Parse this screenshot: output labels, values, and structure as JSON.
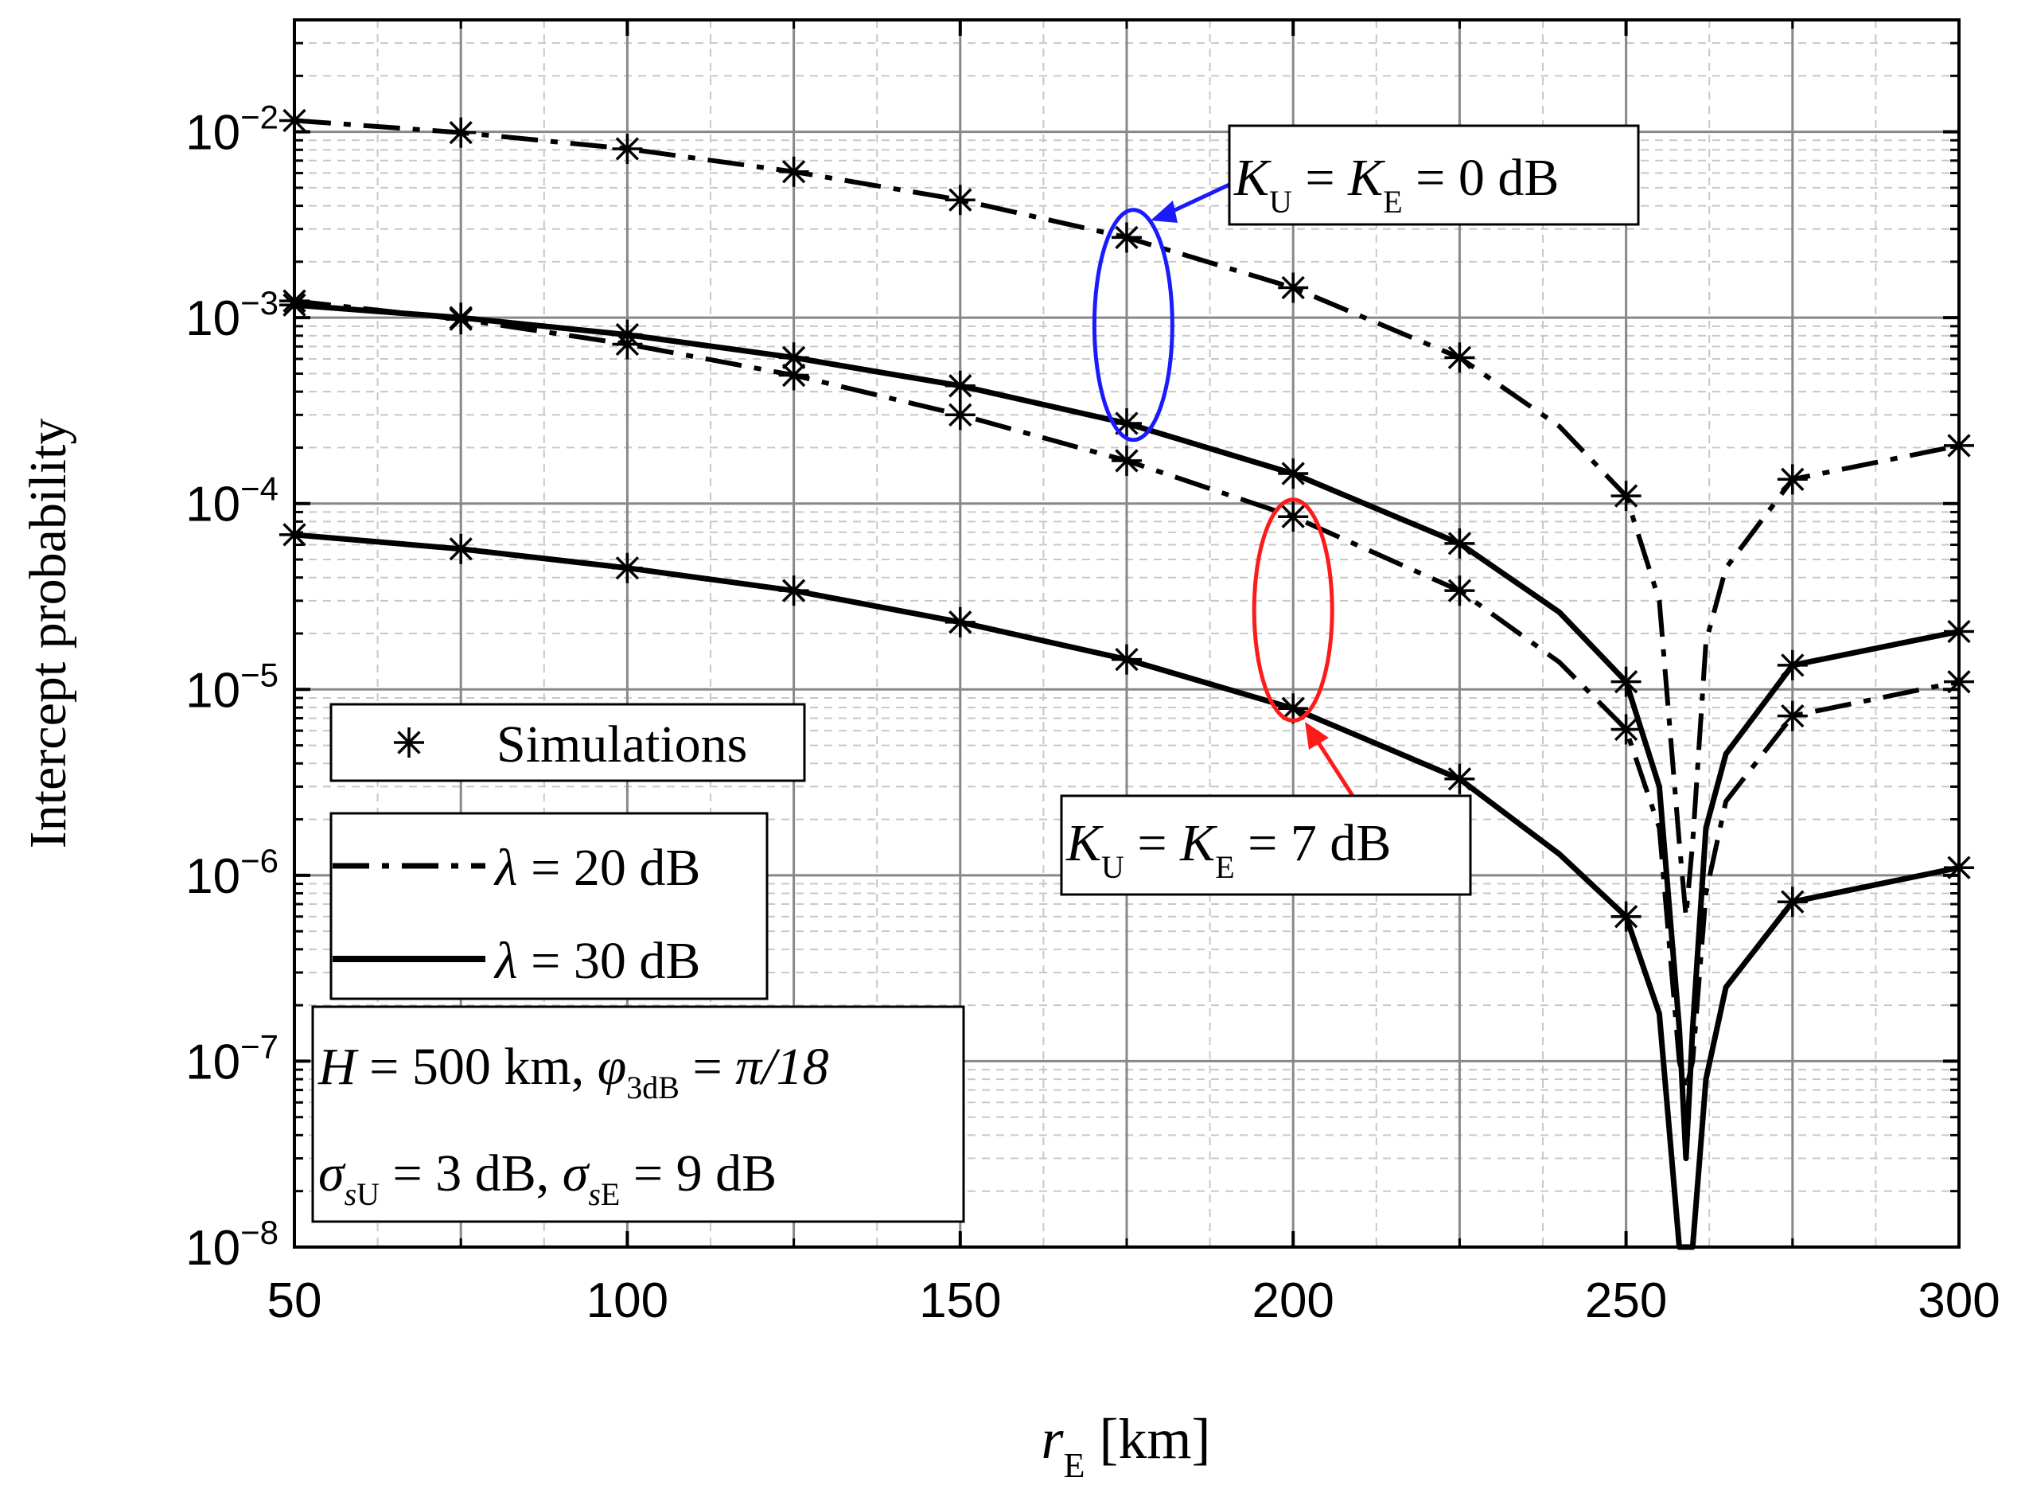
{
  "chart_data": {
    "type": "line",
    "title": "",
    "xlabel": {
      "symbol": "r",
      "subscript": "E",
      "unit": " [km]"
    },
    "ylabel": "Intercept probability",
    "yscale": "log",
    "xlim": [
      50,
      300
    ],
    "ylim": [
      1e-08,
      0.04
    ],
    "grid": true,
    "xticks": [
      50,
      100,
      150,
      200,
      250,
      300
    ],
    "xtick_labels": [
      "50",
      "100",
      "150",
      "200",
      "250",
      "300"
    ],
    "ytick_exponents": [
      -8,
      -7,
      -6,
      -5,
      -4,
      -3,
      -2
    ],
    "ytick_base": "10",
    "series": [
      {
        "name": "K_U = K_E = 0 dB, lambda = 20 dB",
        "style": "dashdot",
        "x": [
          50,
          75,
          100,
          125,
          150,
          175,
          200,
          225,
          240,
          250,
          255,
          258,
          259,
          260,
          262,
          265,
          275,
          300
        ],
        "y": [
          0.0115,
          0.0099,
          0.0081,
          0.0061,
          0.0043,
          0.0027,
          0.00145,
          0.00061,
          0.00026,
          0.00011,
          3e-05,
          1.5e-06,
          6e-07,
          1.5e-06,
          1.8e-05,
          4.5e-05,
          0.000135,
          0.000205
        ],
        "sim_x": [
          50,
          75,
          100,
          125,
          150,
          175,
          200,
          225,
          250,
          275,
          300
        ],
        "sim_y": [
          0.0115,
          0.0099,
          0.0081,
          0.0061,
          0.0043,
          0.0027,
          0.00145,
          0.00061,
          0.00011,
          0.000135,
          0.000205
        ]
      },
      {
        "name": "K_U = K_E = 0 dB, lambda = 30 dB",
        "style": "solid",
        "x": [
          50,
          75,
          100,
          125,
          150,
          175,
          200,
          225,
          240,
          250,
          255,
          258,
          259,
          260,
          262,
          265,
          275,
          300
        ],
        "y": [
          0.00117,
          0.001,
          0.00081,
          0.00061,
          0.00043,
          0.00027,
          0.000145,
          6.1e-05,
          2.6e-05,
          1.1e-05,
          3e-06,
          1.5e-07,
          3e-08,
          1.5e-07,
          1.8e-06,
          4.5e-06,
          1.35e-05,
          2.05e-05
        ],
        "sim_x": [
          50,
          75,
          100,
          125,
          150,
          175,
          200,
          225,
          250,
          275,
          300
        ],
        "sim_y": [
          0.00117,
          0.001,
          0.00081,
          0.00061,
          0.00043,
          0.00027,
          0.000145,
          6.1e-05,
          1.1e-05,
          1.35e-05,
          2.05e-05
        ]
      },
      {
        "name": "K_U = K_E = 7 dB, lambda = 20 dB",
        "style": "dashdot",
        "x": [
          50,
          75,
          100,
          125,
          150,
          175,
          200,
          225,
          240,
          250,
          255,
          258,
          259,
          260,
          262,
          265,
          275,
          300
        ],
        "y": [
          0.00123,
          0.00098,
          0.00072,
          0.00049,
          0.0003,
          0.00017,
          8.5e-05,
          3.4e-05,
          1.4e-05,
          6.1e-06,
          1.8e-06,
          1e-07,
          7e-08,
          1e-07,
          8e-07,
          2.5e-06,
          7.2e-06,
          1.1e-05
        ],
        "sim_x": [
          50,
          75,
          100,
          125,
          150,
          175,
          200,
          225,
          250,
          275,
          300
        ],
        "sim_y": [
          0.00123,
          0.00098,
          0.00072,
          0.00049,
          0.0003,
          0.00017,
          8.5e-05,
          3.4e-05,
          6.1e-06,
          7.2e-06,
          1.1e-05
        ]
      },
      {
        "name": "K_U = K_E = 7 dB, lambda = 30 dB",
        "style": "solid",
        "x": [
          50,
          75,
          100,
          125,
          150,
          175,
          200,
          225,
          240,
          250,
          255,
          258,
          259,
          260,
          262,
          265,
          275,
          300
        ],
        "y": [
          6.8e-05,
          5.7e-05,
          4.5e-05,
          3.4e-05,
          2.3e-05,
          1.45e-05,
          7.9e-06,
          3.3e-06,
          1.3e-06,
          6e-07,
          1.8e-07,
          1e-08,
          1e-08,
          1e-08,
          8e-08,
          2.5e-07,
          7.2e-07,
          1.1e-06
        ],
        "sim_x": [
          50,
          75,
          100,
          125,
          150,
          175,
          200,
          225,
          250,
          275,
          300
        ],
        "sim_y": [
          6.8e-05,
          5.7e-05,
          4.5e-05,
          3.4e-05,
          2.3e-05,
          1.45e-05,
          7.9e-06,
          3.3e-06,
          6e-07,
          7.2e-07,
          1.1e-06
        ]
      }
    ],
    "legend": {
      "simulations": "Simulations",
      "lambda_symbol": "λ",
      "lambda20": " = 20 dB",
      "lambda30": " = 30 dB"
    },
    "params": {
      "line1_h": "H",
      "line1_rest": " = 500 km, ",
      "phi": "φ",
      "phi_sub": "3dB",
      "phi_eq": " = ",
      "pi_frac": "π/18",
      "sigma": "σ",
      "sub_s": "s",
      "sub_u": "U",
      "sub_e": "E",
      "sigma_u_val": " = 3 dB, ",
      "sigma_e_val": " = 9 dB"
    },
    "annotations": [
      {
        "id": "k0",
        "color": "#1a1aff",
        "k": "K",
        "sub_u": "U",
        "eq1": " = ",
        "sub_e": "E",
        "eq2": " = 0 dB",
        "ellipse_center_x": 176,
        "ellipse_y_range": [
          0.00022,
          0.0038
        ]
      },
      {
        "id": "k7",
        "color": "#ff1a1a",
        "k": "K",
        "sub_u": "U",
        "eq1": " = ",
        "sub_e": "E",
        "eq2": " = 7 dB",
        "ellipse_center_x": 200,
        "ellipse_y_range": [
          6.8e-06,
          0.000105
        ]
      }
    ]
  }
}
